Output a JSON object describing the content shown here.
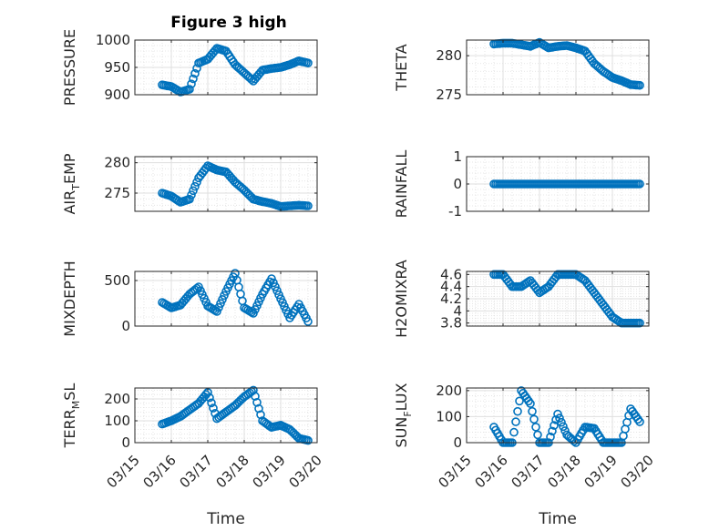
{
  "figure": {
    "title": "Figure 3 high"
  },
  "chart_data": [
    {
      "type": "scatter",
      "ylabel": "PRESSURE",
      "xlim": [
        "03/15",
        "03/20"
      ],
      "ylim": [
        900,
        1000
      ],
      "yticks": [
        900,
        950,
        1000
      ],
      "grid": true,
      "series": [
        {
          "x": [
            "03/15 18:00",
            "03/16 00:00",
            "03/16 06:00",
            "03/16 12:00",
            "03/16 18:00",
            "03/17 00:00",
            "03/17 06:00",
            "03/17 12:00",
            "03/17 18:00",
            "03/18 00:00",
            "03/18 06:00",
            "03/18 12:00",
            "03/18 18:00",
            "03/19 00:00",
            "03/19 06:00",
            "03/19 12:00",
            "03/19 18:00"
          ],
          "y": [
            918,
            915,
            905,
            910,
            958,
            965,
            985,
            980,
            955,
            940,
            925,
            945,
            948,
            950,
            955,
            962,
            958
          ]
        }
      ]
    },
    {
      "type": "scatter",
      "ylabel": "THETA",
      "xlim": [
        "03/15",
        "03/20"
      ],
      "ylim": [
        275,
        282
      ],
      "yticks": [
        275,
        280
      ],
      "grid": true,
      "series": [
        {
          "x": [
            "03/15 18:00",
            "03/16 00:00",
            "03/16 06:00",
            "03/16 12:00",
            "03/16 18:00",
            "03/17 00:00",
            "03/17 06:00",
            "03/17 12:00",
            "03/17 18:00",
            "03/18 00:00",
            "03/18 06:00",
            "03/18 12:00",
            "03/18 18:00",
            "03/19 00:00",
            "03/19 06:00",
            "03/19 12:00",
            "03/19 18:00"
          ],
          "y": [
            281.5,
            281.6,
            281.6,
            281.4,
            281.2,
            281.7,
            281.0,
            281.2,
            281.3,
            281.0,
            280.6,
            279.0,
            278.0,
            277.2,
            276.8,
            276.3,
            276.2
          ]
        }
      ]
    },
    {
      "type": "scatter",
      "ylabel": "AIR_TEMP",
      "xlim": [
        "03/15",
        "03/20"
      ],
      "ylim": [
        272,
        281
      ],
      "yticks": [
        275,
        280
      ],
      "grid": true,
      "series": [
        {
          "x": [
            "03/15 18:00",
            "03/16 00:00",
            "03/16 06:00",
            "03/16 12:00",
            "03/16 18:00",
            "03/17 00:00",
            "03/17 06:00",
            "03/17 12:00",
            "03/17 18:00",
            "03/18 00:00",
            "03/18 06:00",
            "03/18 12:00",
            "03/18 18:00",
            "03/19 00:00",
            "03/19 06:00",
            "03/19 12:00",
            "03/19 18:00"
          ],
          "y": [
            275.0,
            274.5,
            273.5,
            274.0,
            277.5,
            279.5,
            278.8,
            278.5,
            276.8,
            275.5,
            274.0,
            273.6,
            273.3,
            272.8,
            272.9,
            273.0,
            272.9
          ]
        }
      ]
    },
    {
      "type": "scatter",
      "ylabel": "RAINFALL",
      "xlim": [
        "03/15",
        "03/20"
      ],
      "ylim": [
        -1,
        1
      ],
      "yticks": [
        -1,
        0,
        1
      ],
      "grid": true,
      "series": [
        {
          "x": [
            "03/15 18:00",
            "03/16 00:00",
            "03/16 06:00",
            "03/16 12:00",
            "03/16 18:00",
            "03/17 00:00",
            "03/17 06:00",
            "03/17 12:00",
            "03/17 18:00",
            "03/18 00:00",
            "03/18 06:00",
            "03/18 12:00",
            "03/18 18:00",
            "03/19 00:00",
            "03/19 06:00",
            "03/19 12:00",
            "03/19 18:00"
          ],
          "y": [
            0,
            0,
            0,
            0,
            0,
            0,
            0,
            0,
            0,
            0,
            0,
            0,
            0,
            0,
            0,
            0,
            0
          ]
        }
      ]
    },
    {
      "type": "scatter",
      "ylabel": "MIXDEPTH",
      "xlim": [
        "03/15",
        "03/20"
      ],
      "ylim": [
        0,
        600
      ],
      "yticks": [
        0,
        500
      ],
      "grid": true,
      "series": [
        {
          "x": [
            "03/15 18:00",
            "03/16 00:00",
            "03/16 06:00",
            "03/16 12:00",
            "03/16 18:00",
            "03/17 00:00",
            "03/17 06:00",
            "03/17 12:00",
            "03/17 18:00",
            "03/18 00:00",
            "03/18 06:00",
            "03/18 12:00",
            "03/18 18:00",
            "03/19 00:00",
            "03/19 06:00",
            "03/19 12:00",
            "03/19 18:00"
          ],
          "y": [
            260,
            200,
            230,
            350,
            430,
            220,
            160,
            380,
            580,
            200,
            140,
            350,
            520,
            300,
            90,
            240,
            50
          ]
        }
      ]
    },
    {
      "type": "scatter",
      "ylabel": "H2OMIXRA",
      "xlim": [
        "03/15",
        "03/20"
      ],
      "ylim": [
        3.75,
        4.65
      ],
      "yticks": [
        3.8,
        4,
        4.2,
        4.4,
        4.6
      ],
      "grid": true,
      "series": [
        {
          "x": [
            "03/15 18:00",
            "03/16 00:00",
            "03/16 06:00",
            "03/16 12:00",
            "03/16 18:00",
            "03/17 00:00",
            "03/17 06:00",
            "03/17 12:00",
            "03/17 18:00",
            "03/18 00:00",
            "03/18 06:00",
            "03/18 12:00",
            "03/18 18:00",
            "03/19 00:00",
            "03/19 06:00",
            "03/19 12:00",
            "03/19 18:00"
          ],
          "y": [
            4.6,
            4.6,
            4.4,
            4.4,
            4.5,
            4.3,
            4.4,
            4.6,
            4.6,
            4.6,
            4.5,
            4.3,
            4.1,
            3.9,
            3.8,
            3.8,
            3.8
          ]
        }
      ]
    },
    {
      "type": "scatter",
      "ylabel": "TERR_MSL",
      "xlim": [
        "03/15",
        "03/20"
      ],
      "ylim": [
        0,
        250
      ],
      "yticks": [
        0,
        100,
        200
      ],
      "grid": true,
      "series": [
        {
          "x": [
            "03/15 18:00",
            "03/16 00:00",
            "03/16 06:00",
            "03/16 12:00",
            "03/16 18:00",
            "03/17 00:00",
            "03/17 06:00",
            "03/17 12:00",
            "03/17 18:00",
            "03/18 00:00",
            "03/18 06:00",
            "03/18 12:00",
            "03/18 18:00",
            "03/19 00:00",
            "03/19 06:00",
            "03/19 12:00",
            "03/19 18:00"
          ],
          "y": [
            85,
            100,
            120,
            150,
            180,
            230,
            110,
            140,
            170,
            210,
            240,
            100,
            70,
            80,
            60,
            20,
            10
          ]
        }
      ]
    },
    {
      "type": "scatter",
      "ylabel": "SUN_FLUX",
      "xlim": [
        "03/15",
        "03/20"
      ],
      "ylim": [
        0,
        210
      ],
      "yticks": [
        0,
        100,
        200
      ],
      "grid": true,
      "series": [
        {
          "x": [
            "03/15 18:00",
            "03/16 00:00",
            "03/16 06:00",
            "03/16 12:00",
            "03/16 18:00",
            "03/17 00:00",
            "03/17 06:00",
            "03/17 12:00",
            "03/17 18:00",
            "03/18 00:00",
            "03/18 06:00",
            "03/18 12:00",
            "03/18 18:00",
            "03/19 00:00",
            "03/19 06:00",
            "03/19 12:00",
            "03/19 18:00"
          ],
          "y": [
            60,
            0,
            0,
            200,
            150,
            0,
            0,
            110,
            30,
            0,
            60,
            55,
            0,
            0,
            0,
            130,
            80
          ]
        }
      ]
    }
  ],
  "axes_text": {
    "xticklabels": [
      "03/15",
      "03/16",
      "03/17",
      "03/18",
      "03/19",
      "03/20"
    ],
    "xlabel": "Time",
    "ylabels_display": [
      {
        "main": "PRESSURE"
      },
      {
        "main": "THETA"
      },
      {
        "main": "AIR",
        "sub": "T",
        "rest": "EMP"
      },
      {
        "main": "RAINFALL"
      },
      {
        "main": "MIXDEPTH"
      },
      {
        "main": "H2OMIXRA"
      },
      {
        "main": "TERR",
        "sub": "M",
        "rest": "SL"
      },
      {
        "main": "SUN",
        "sub": "F",
        "rest": "LUX"
      }
    ]
  },
  "colors": {
    "marker": "#0072BD",
    "axes": "#262626",
    "grid": "#DFDFDF"
  }
}
